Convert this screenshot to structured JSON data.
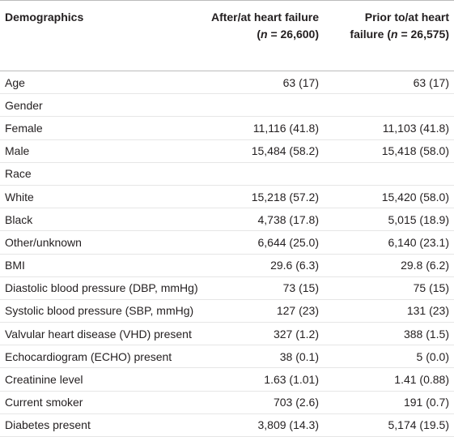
{
  "table": {
    "columns": [
      {
        "label": "Demographics"
      },
      {
        "label": "After/at heart failure",
        "n_open": "(",
        "n_symbol": "n",
        "n_rest": "= 26,600)"
      },
      {
        "label": "Prior to/at heart failure",
        "n_open": "(",
        "n_symbol": "n",
        "n_rest": "= 26,575)"
      }
    ],
    "rows": [
      [
        "Age",
        "63 (17)",
        "63 (17)"
      ],
      [
        "Gender"
      ],
      [
        "Female",
        "11,116 (41.8)",
        "11,103 (41.8)"
      ],
      [
        "Male",
        "15,484 (58.2)",
        "15,418 (58.0)"
      ],
      [
        "Race"
      ],
      [
        "White",
        "15,218 (57.2)",
        "15,420 (58.0)"
      ],
      [
        "Black",
        "4,738 (17.8)",
        "5,015 (18.9)"
      ],
      [
        "Other/unknown",
        "6,644 (25.0)",
        "6,140 (23.1)"
      ],
      [
        "BMI",
        "29.6 (6.3)",
        "29.8 (6.2)"
      ],
      [
        "Diastolic blood pressure (DBP, mmHg)",
        "73 (15)",
        "75 (15)"
      ],
      [
        "Systolic blood pressure (SBP, mmHg)",
        "127 (23)",
        "131 (23)"
      ],
      [
        "Valvular heart disease (VHD) present",
        "327 (1.2)",
        "388 (1.5)"
      ],
      [
        "Echocardiogram (ECHO) present",
        "38 (0.1)",
        "5 (0.0)"
      ],
      [
        "Creatinine level",
        "1.63 (1.01)",
        "1.41 (0.88)"
      ],
      [
        "Current smoker",
        "703 (2.6)",
        "191 (0.7)"
      ],
      [
        "Diabetes present",
        "3,809 (14.3)",
        "5,174 (19.5)"
      ]
    ]
  }
}
